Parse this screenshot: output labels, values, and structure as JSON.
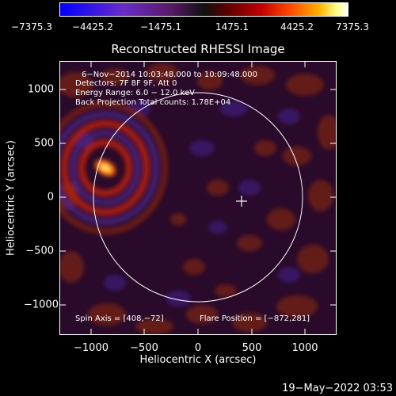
{
  "colorbar": {
    "ticks": [
      "−7375.3",
      "−4425.2",
      "−1475.1",
      "1475.1",
      "4425.2",
      "7375.3"
    ]
  },
  "title": "Reconstructed RHESSI Image",
  "annotations": {
    "line1": "6−Nov−2014 10:03:48.000 to 10:09:48.000",
    "line2": "Detectors: 7F 8F 9F, Att 0",
    "line3": "Energy Range: 6.0 − 12.0 keV",
    "line4": "Back Projection    Total counts: 1.78E+04"
  },
  "footer": {
    "spin_axis": "Spin Axis = [408,−72]",
    "flare_position": "Flare Position = [−872,281]"
  },
  "axes": {
    "xlabel": "Heliocentric X (arcsec)",
    "ylabel": "Heliocentric Y (arcsec)",
    "xticks": [
      "−1000",
      "−500",
      "0",
      "500",
      "1000"
    ],
    "yticks": [
      "1000",
      "500",
      "0",
      "−500",
      "−1000"
    ]
  },
  "timestamp": "19−May−2022 03:53"
}
